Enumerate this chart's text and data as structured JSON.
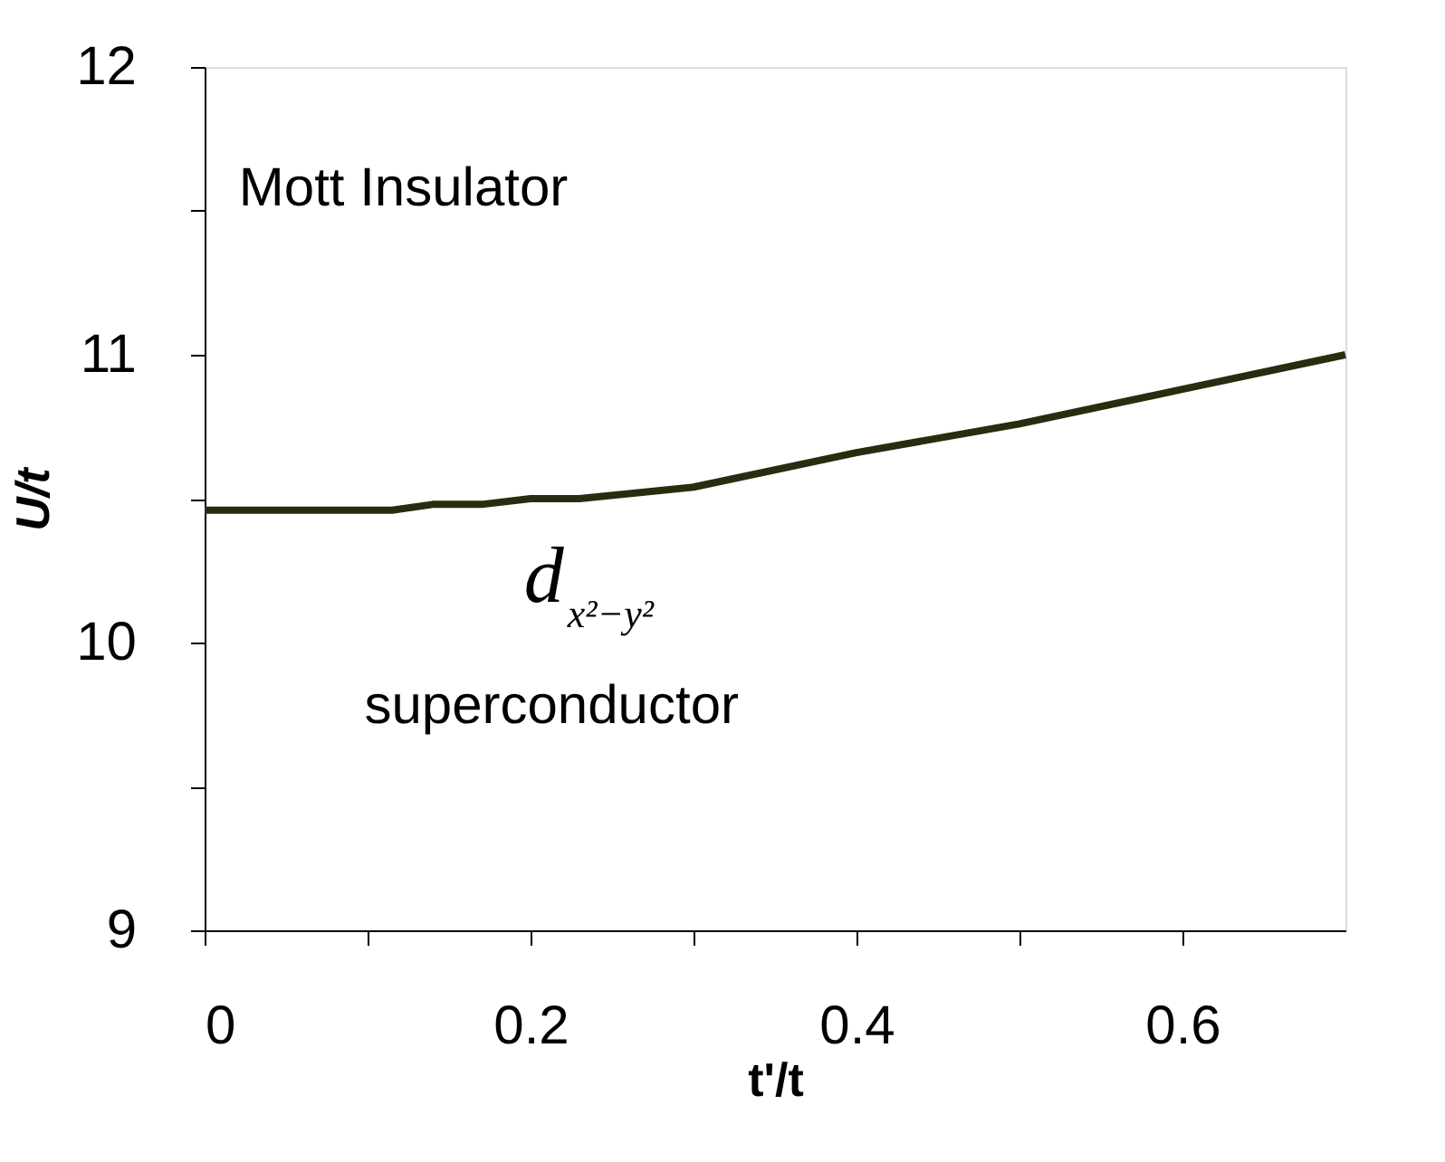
{
  "chart_data": {
    "type": "line",
    "xlabel": "t'/t",
    "ylabel": "U/t",
    "x": [
      0,
      0.115,
      0.14,
      0.17,
      0.2,
      0.23,
      0.3,
      0.4,
      0.5,
      0.6,
      0.7
    ],
    "series": [
      {
        "color": "#2b2b10",
        "values": [
          10.46,
          10.46,
          10.48,
          10.48,
          10.5,
          10.5,
          10.54,
          10.66,
          10.76,
          10.88,
          11.0
        ]
      }
    ],
    "xlim": [
      0,
      0.7
    ],
    "ylim": [
      9,
      12
    ],
    "xticks": [
      0,
      {
        "value": 0.1,
        "label": null
      },
      0.2,
      {
        "value": 0.3,
        "label": null
      },
      0.4,
      {
        "value": 0.5,
        "label": null
      },
      0.6
    ],
    "yticks": [
      9,
      {
        "value": 9.5,
        "label": null
      },
      10,
      {
        "value": 10.5,
        "label": null
      },
      11,
      {
        "value": 11.5,
        "label": null
      },
      12
    ],
    "grid": false,
    "marker": "none",
    "line_style": "solid",
    "annotations": [
      "Mott Insulator",
      "d$_{x²−y²}$",
      "superconductor"
    ]
  }
}
